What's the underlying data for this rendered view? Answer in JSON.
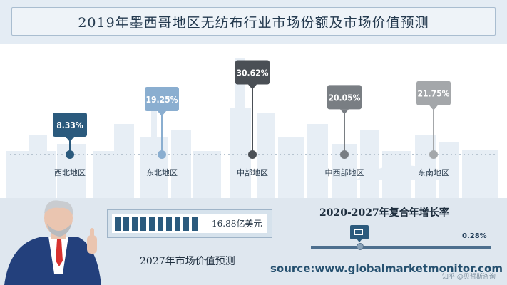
{
  "title": "2019年墨西哥地区无纺布行业市场份额及市场价值预测",
  "chart_data": {
    "type": "bar",
    "categories": [
      "西北地区",
      "东北地区",
      "中部地区",
      "中西部地区",
      "东南地区"
    ],
    "values": [
      8.33,
      19.25,
      30.62,
      20.05,
      21.75
    ],
    "value_labels": [
      "8.33%",
      "19.25%",
      "30.62%",
      "20.05%",
      "21.75%"
    ],
    "unit": "%",
    "colors": [
      "#2b5a7d",
      "#8aaed0",
      "#4a4f55",
      "#797e83",
      "#a4a7aa"
    ]
  },
  "market_forecast": {
    "value_text": "16.88亿美元",
    "label": "2027年市场价值预测",
    "filled_segments": 10
  },
  "cagr": {
    "label": "2020-2027年复合年增长率",
    "value_text": "0.28%",
    "value": 0.28
  },
  "source": "source:www.globalmarketmonitor.com",
  "watermark": "知乎 @贝哲斯咨询"
}
